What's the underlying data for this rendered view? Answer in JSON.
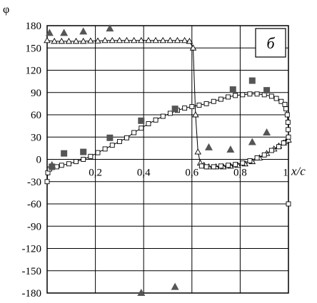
{
  "chart_data": {
    "type": "scatter",
    "ylabel": "φ",
    "xlabel": "x/c",
    "panel_label": "б",
    "xlim": [
      0,
      1
    ],
    "ylim": [
      -180,
      180
    ],
    "x_ticks": [
      {
        "value": 0.2,
        "label": "0,2"
      },
      {
        "value": 0.4,
        "label": "0,4"
      },
      {
        "value": 0.6,
        "label": "0,6"
      },
      {
        "value": 0.8,
        "label": "0,8"
      },
      {
        "value": 1.0,
        "label": "1"
      }
    ],
    "y_ticks": [
      {
        "value": 180,
        "label": "180"
      },
      {
        "value": 150,
        "label": "150"
      },
      {
        "value": 120,
        "label": "120"
      },
      {
        "value": 90,
        "label": "90"
      },
      {
        "value": 60,
        "label": "60"
      },
      {
        "value": 30,
        "label": "30"
      },
      {
        "value": 0,
        "label": "0"
      },
      {
        "value": -30,
        "label": "-30"
      },
      {
        "value": -60,
        "label": "-60"
      },
      {
        "value": -90,
        "label": "-90"
      },
      {
        "value": -120,
        "label": "-120"
      },
      {
        "value": -150,
        "label": "-150"
      },
      {
        "value": -180,
        "label": "-180"
      }
    ],
    "grid": true,
    "series": [
      {
        "marker": "open-triangle-line",
        "color": "#000000",
        "points": [
          [
            0.0,
            160
          ],
          [
            0.03,
            159
          ],
          [
            0.06,
            159
          ],
          [
            0.09,
            159
          ],
          [
            0.12,
            159
          ],
          [
            0.15,
            159
          ],
          [
            0.18,
            159.5
          ],
          [
            0.21,
            159.5
          ],
          [
            0.24,
            160
          ],
          [
            0.27,
            160
          ],
          [
            0.3,
            160
          ],
          [
            0.33,
            160
          ],
          [
            0.36,
            160
          ],
          [
            0.39,
            160
          ],
          [
            0.42,
            160
          ],
          [
            0.45,
            160
          ],
          [
            0.48,
            160
          ],
          [
            0.51,
            160
          ],
          [
            0.54,
            160
          ],
          [
            0.57,
            160
          ],
          [
            0.59,
            159
          ],
          [
            0.605,
            150
          ],
          [
            0.615,
            60
          ],
          [
            0.625,
            10
          ],
          [
            0.635,
            -5
          ],
          [
            0.65,
            -8
          ],
          [
            0.67,
            -10
          ],
          [
            0.7,
            -10
          ],
          [
            0.73,
            -10
          ],
          [
            0.76,
            -9
          ],
          [
            0.79,
            -8
          ],
          [
            0.82,
            -6
          ],
          [
            0.85,
            -3
          ],
          [
            0.88,
            2
          ],
          [
            0.91,
            8
          ],
          [
            0.94,
            14
          ],
          [
            0.96,
            18
          ],
          [
            0.98,
            22
          ],
          [
            0.99,
            24
          ],
          [
            1.0,
            26
          ]
        ]
      },
      {
        "marker": "open-square-line",
        "color": "#000000",
        "points": [
          [
            0.0,
            -30
          ],
          [
            0.003,
            -18
          ],
          [
            0.01,
            -13
          ],
          [
            0.02,
            -11
          ],
          [
            0.04,
            -10
          ],
          [
            0.06,
            -8
          ],
          [
            0.09,
            -6
          ],
          [
            0.12,
            -3
          ],
          [
            0.15,
            0
          ],
          [
            0.18,
            4
          ],
          [
            0.21,
            9
          ],
          [
            0.24,
            14
          ],
          [
            0.27,
            19
          ],
          [
            0.3,
            24
          ],
          [
            0.33,
            29
          ],
          [
            0.36,
            36
          ],
          [
            0.39,
            42
          ],
          [
            0.42,
            48
          ],
          [
            0.45,
            53
          ],
          [
            0.48,
            58
          ],
          [
            0.51,
            62
          ],
          [
            0.54,
            66
          ],
          [
            0.57,
            69
          ],
          [
            0.6,
            71
          ],
          [
            0.63,
            73
          ],
          [
            0.66,
            75
          ],
          [
            0.69,
            78
          ],
          [
            0.72,
            81
          ],
          [
            0.75,
            84
          ],
          [
            0.78,
            86
          ],
          [
            0.81,
            87
          ],
          [
            0.84,
            88
          ],
          [
            0.87,
            88
          ],
          [
            0.9,
            87
          ],
          [
            0.93,
            85
          ],
          [
            0.95,
            82
          ],
          [
            0.97,
            78
          ],
          [
            0.985,
            74
          ],
          [
            0.99,
            68
          ],
          [
            0.995,
            60
          ],
          [
            0.998,
            50
          ],
          [
            0.999,
            40
          ],
          [
            1.0,
            30
          ],
          [
            0.98,
            22
          ],
          [
            0.96,
            17
          ],
          [
            0.93,
            12
          ],
          [
            0.9,
            6
          ],
          [
            0.87,
            2
          ],
          [
            0.84,
            -2
          ],
          [
            0.81,
            -5
          ],
          [
            0.78,
            -7
          ],
          [
            0.75,
            -8
          ],
          [
            0.72,
            -9
          ],
          [
            0.69,
            -10
          ],
          [
            0.66,
            -10
          ],
          [
            0.64,
            -9
          ],
          [
            1.0,
            -60
          ]
        ]
      },
      {
        "marker": "filled-square",
        "color": "#555555",
        "points": [
          [
            0.02,
            -10
          ],
          [
            0.07,
            8
          ],
          [
            0.15,
            10
          ],
          [
            0.26,
            29
          ],
          [
            0.39,
            52
          ],
          [
            0.53,
            68
          ],
          [
            0.77,
            94
          ],
          [
            0.85,
            106
          ],
          [
            0.91,
            93
          ]
        ]
      },
      {
        "marker": "filled-triangle",
        "color": "#555555",
        "points": [
          [
            0.01,
            170
          ],
          [
            0.07,
            170
          ],
          [
            0.15,
            172
          ],
          [
            0.26,
            176
          ],
          [
            0.39,
            -180
          ],
          [
            0.53,
            -172
          ],
          [
            0.67,
            16
          ],
          [
            0.76,
            13
          ],
          [
            0.85,
            23
          ],
          [
            0.91,
            36
          ],
          [
            0.02,
            -8
          ]
        ]
      }
    ]
  }
}
